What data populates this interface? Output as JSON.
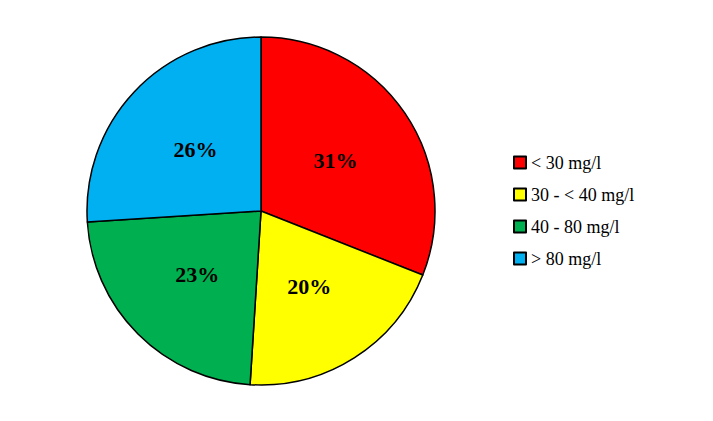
{
  "chart_data": {
    "type": "pie",
    "categories": [
      "< 30 mg/l",
      "30 - < 40 mg/l",
      "40 - 80 mg/l",
      "> 80 mg/l"
    ],
    "values": [
      31,
      20,
      23,
      26
    ],
    "value_labels": [
      "31%",
      "20%",
      "23%",
      "26%"
    ],
    "colors": [
      "#ff0000",
      "#ffff00",
      "#00b050",
      "#00b0f0"
    ],
    "data_labels": true,
    "legend": "right"
  }
}
